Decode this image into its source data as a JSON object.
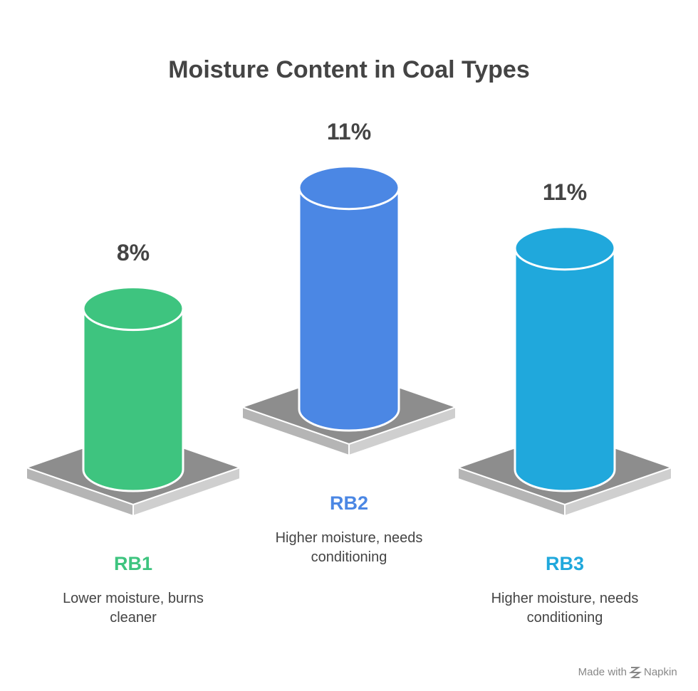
{
  "chart_data": {
    "type": "bar",
    "title": "Moisture Content in Coal Types",
    "categories": [
      "RB1",
      "RB2",
      "RB3"
    ],
    "values": [
      8,
      11,
      11
    ],
    "value_labels": [
      "8%",
      "11%",
      "11%"
    ],
    "descriptions": [
      "Lower moisture, burns cleaner",
      "Higher moisture, needs conditioning",
      "Higher moisture, needs conditioning"
    ],
    "colors": [
      "#3ec47f",
      "#4b87e4",
      "#20a8dc"
    ]
  },
  "footer": {
    "text": "Made with",
    "brand": "Napkin"
  }
}
